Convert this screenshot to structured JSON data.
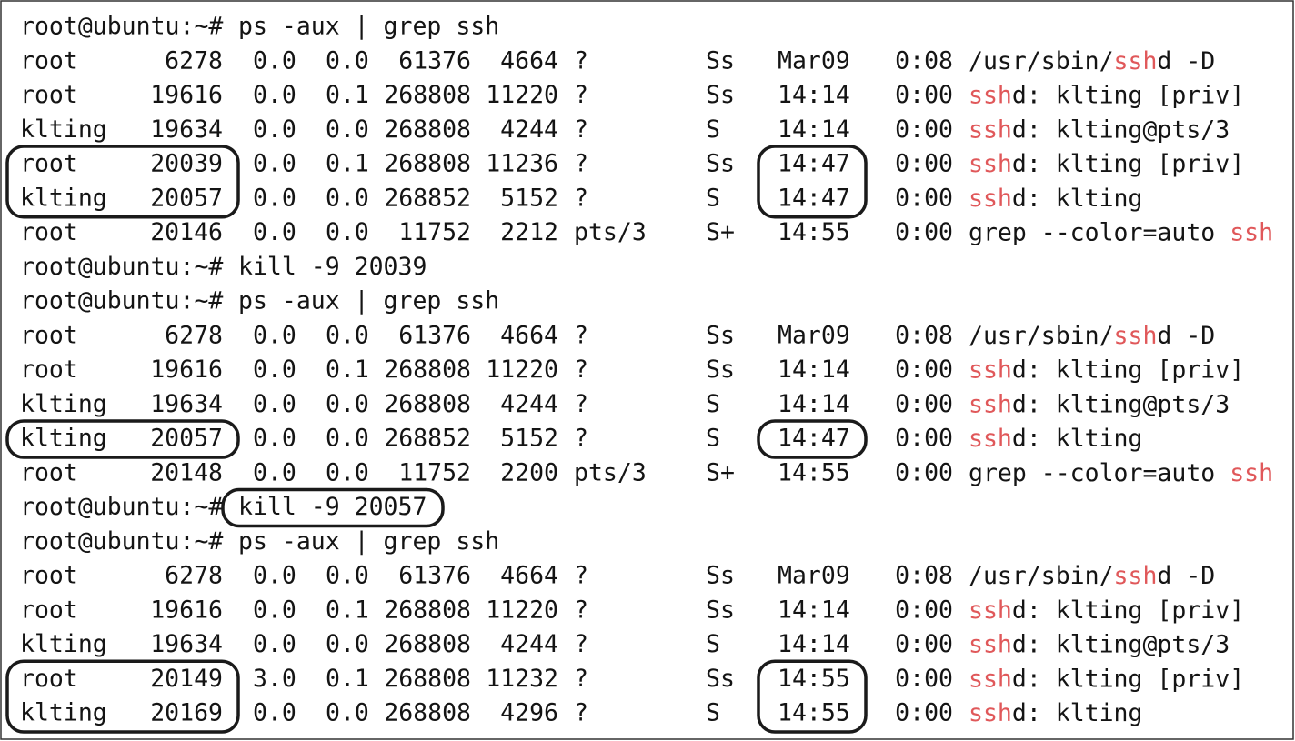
{
  "terminal": {
    "lines": [
      {
        "prompt": "root@ubuntu:~#",
        "command": "ps -aux | grep ssh"
      },
      {
        "cells": [
          "root",
          "6278",
          "0.0",
          "0.0",
          "61376",
          "4664",
          "?",
          "Ss",
          "Mar09",
          "0:08"
        ],
        "command": [
          "/usr/sbin/",
          {
            "text": "ssh",
            "match": true
          },
          "d -D"
        ]
      },
      {
        "cells": [
          "root",
          "19616",
          "0.0",
          "0.1",
          "268808",
          "11220",
          "?",
          "Ss",
          "14:14",
          "0:00"
        ],
        "command": [
          {
            "text": "ssh",
            "match": true
          },
          "d: klting [priv]"
        ]
      },
      {
        "cells": [
          "klting",
          "19634",
          "0.0",
          "0.0",
          "268808",
          "4244",
          "?",
          "S",
          "14:14",
          "0:00"
        ],
        "command": [
          {
            "text": "ssh",
            "match": true
          },
          "d: klting@pts/3"
        ]
      },
      {
        "cells": [
          "root",
          "20039",
          "0.0",
          "0.1",
          "268808",
          "11236",
          "?",
          "Ss",
          "14:47",
          "0:00"
        ],
        "command": [
          {
            "text": "ssh",
            "match": true
          },
          "d: klting [priv]"
        ]
      },
      {
        "cells": [
          "klting",
          "20057",
          "0.0",
          "0.0",
          "268852",
          "5152",
          "?",
          "S",
          "14:47",
          "0:00"
        ],
        "command": [
          {
            "text": "ssh",
            "match": true
          },
          "d: klting"
        ]
      },
      {
        "cells": [
          "root",
          "20146",
          "0.0",
          "0.0",
          "11752",
          "2212",
          "pts/3",
          "S+",
          "14:55",
          "0:00"
        ],
        "command": [
          "grep --color=auto ",
          {
            "text": "ssh",
            "match": true
          }
        ]
      },
      {
        "prompt": "root@ubuntu:~#",
        "command": "kill -9 20039"
      },
      {
        "prompt": "root@ubuntu:~#",
        "command": "ps -aux | grep ssh"
      },
      {
        "cells": [
          "root",
          "6278",
          "0.0",
          "0.0",
          "61376",
          "4664",
          "?",
          "Ss",
          "Mar09",
          "0:08"
        ],
        "command": [
          "/usr/sbin/",
          {
            "text": "ssh",
            "match": true
          },
          "d -D"
        ]
      },
      {
        "cells": [
          "root",
          "19616",
          "0.0",
          "0.1",
          "268808",
          "11220",
          "?",
          "Ss",
          "14:14",
          "0:00"
        ],
        "command": [
          {
            "text": "ssh",
            "match": true
          },
          "d: klting [priv]"
        ]
      },
      {
        "cells": [
          "klting",
          "19634",
          "0.0",
          "0.0",
          "268808",
          "4244",
          "?",
          "S",
          "14:14",
          "0:00"
        ],
        "command": [
          {
            "text": "ssh",
            "match": true
          },
          "d: klting@pts/3"
        ]
      },
      {
        "cells": [
          "klting",
          "20057",
          "0.0",
          "0.0",
          "268852",
          "5152",
          "?",
          "S",
          "14:47",
          "0:00"
        ],
        "command": [
          {
            "text": "ssh",
            "match": true
          },
          "d: klting"
        ]
      },
      {
        "cells": [
          "root",
          "20148",
          "0.0",
          "0.0",
          "11752",
          "2200",
          "pts/3",
          "S+",
          "14:55",
          "0:00"
        ],
        "command": [
          "grep --color=auto ",
          {
            "text": "ssh",
            "match": true
          }
        ]
      },
      {
        "prompt": "root@ubuntu:~#",
        "command": "kill -9 20057"
      },
      {
        "prompt": "root@ubuntu:~#",
        "command": "ps -aux | grep ssh"
      },
      {
        "cells": [
          "root",
          "6278",
          "0.0",
          "0.0",
          "61376",
          "4664",
          "?",
          "Ss",
          "Mar09",
          "0:08"
        ],
        "command": [
          "/usr/sbin/",
          {
            "text": "ssh",
            "match": true
          },
          "d -D"
        ]
      },
      {
        "cells": [
          "root",
          "19616",
          "0.0",
          "0.1",
          "268808",
          "11220",
          "?",
          "Ss",
          "14:14",
          "0:00"
        ],
        "command": [
          {
            "text": "ssh",
            "match": true
          },
          "d: klting [priv]"
        ]
      },
      {
        "cells": [
          "klting",
          "19634",
          "0.0",
          "0.0",
          "268808",
          "4244",
          "?",
          "S",
          "14:14",
          "0:00"
        ],
        "command": [
          {
            "text": "ssh",
            "match": true
          },
          "d: klting@pts/3"
        ]
      },
      {
        "cells": [
          "root",
          "20149",
          "3.0",
          "0.1",
          "268808",
          "11232",
          "?",
          "Ss",
          "14:55",
          "0:00"
        ],
        "command": [
          {
            "text": "ssh",
            "match": true
          },
          "d: klting [priv]"
        ]
      },
      {
        "cells": [
          "klting",
          "20169",
          "0.0",
          "0.0",
          "268808",
          "4296",
          "?",
          "S",
          "14:55",
          "0:00"
        ],
        "command": [
          {
            "text": "ssh",
            "match": true
          },
          "d: klting"
        ]
      }
    ]
  }
}
